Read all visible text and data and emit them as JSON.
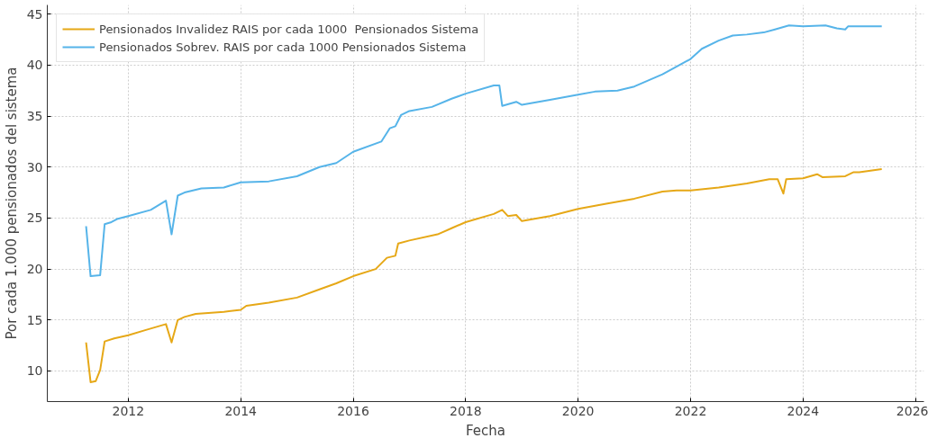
{
  "chart_data": {
    "type": "line",
    "xlabel": "Fecha",
    "ylabel": "Por cada 1.000 pensionados del sistema",
    "xlim": [
      2010.56,
      2026.15
    ],
    "ylim": [
      7.0,
      45.9
    ],
    "xticks": [
      2012,
      2014,
      2016,
      2018,
      2020,
      2022,
      2024,
      2026
    ],
    "yticks": [
      10,
      15,
      20,
      25,
      30,
      35,
      40,
      45
    ],
    "grid": true,
    "legend": "top left",
    "line_style": "solid",
    "marker": "none",
    "series": [
      {
        "name": "Pensionados Invalidez RAIS por cada 1000  Pensionados Sistema",
        "color": "#e6a817",
        "x": [
          2011.25,
          2011.33,
          2011.42,
          2011.5,
          2011.58,
          2011.75,
          2012.0,
          2012.3,
          2012.67,
          2012.77,
          2012.88,
          2013.0,
          2013.2,
          2013.7,
          2014.0,
          2014.1,
          2014.5,
          2015.0,
          2015.4,
          2015.7,
          2016.0,
          2016.4,
          2016.6,
          2016.75,
          2016.8,
          2017.0,
          2017.5,
          2017.75,
          2018.0,
          2018.5,
          2018.65,
          2018.75,
          2018.9,
          2019.0,
          2019.5,
          2020.0,
          2020.5,
          2021.0,
          2021.5,
          2021.75,
          2022.0,
          2022.5,
          2023.0,
          2023.4,
          2023.55,
          2023.65,
          2023.7,
          2024.0,
          2024.25,
          2024.35,
          2024.75,
          2024.9,
          2025.0,
          2025.4
        ],
        "values": [
          12.8,
          8.9,
          9.0,
          10.1,
          12.9,
          13.2,
          13.5,
          14.0,
          14.6,
          12.8,
          15.0,
          15.3,
          15.6,
          15.8,
          16.0,
          16.4,
          16.7,
          17.2,
          18.0,
          18.6,
          19.3,
          20.0,
          21.1,
          21.3,
          22.5,
          22.8,
          23.4,
          24.0,
          24.6,
          25.4,
          25.8,
          25.2,
          25.3,
          24.7,
          25.2,
          25.9,
          26.4,
          26.9,
          27.6,
          27.7,
          27.7,
          28.0,
          28.4,
          28.8,
          28.8,
          27.4,
          28.8,
          28.9,
          29.3,
          29.0,
          29.1,
          29.5,
          29.5,
          29.8
        ]
      },
      {
        "name": "Pensionados Sobrev. RAIS por cada 1000 Pensionados Sistema",
        "color": "#56b4e9",
        "x": [
          2011.25,
          2011.33,
          2011.5,
          2011.58,
          2011.7,
          2011.8,
          2012.0,
          2012.4,
          2012.67,
          2012.77,
          2012.88,
          2013.0,
          2013.3,
          2013.7,
          2014.0,
          2014.5,
          2015.0,
          2015.4,
          2015.7,
          2016.0,
          2016.5,
          2016.65,
          2016.75,
          2016.85,
          2017.0,
          2017.4,
          2017.75,
          2018.0,
          2018.5,
          2018.6,
          2018.65,
          2018.9,
          2019.0,
          2019.5,
          2020.0,
          2020.3,
          2020.7,
          2021.0,
          2021.5,
          2021.8,
          2022.0,
          2022.2,
          2022.5,
          2022.75,
          2023.0,
          2023.3,
          2023.5,
          2023.75,
          2024.0,
          2024.4,
          2024.6,
          2024.75,
          2024.8,
          2025.0,
          2025.4
        ],
        "values": [
          24.2,
          19.3,
          19.4,
          24.4,
          24.6,
          24.9,
          25.2,
          25.8,
          26.7,
          23.4,
          27.2,
          27.5,
          27.9,
          28.0,
          28.5,
          28.6,
          29.1,
          30.0,
          30.4,
          31.5,
          32.5,
          33.8,
          34.0,
          35.1,
          35.5,
          35.9,
          36.7,
          37.2,
          38.0,
          38.0,
          36.0,
          36.4,
          36.1,
          36.6,
          37.1,
          37.4,
          37.5,
          37.9,
          39.1,
          40.0,
          40.6,
          41.6,
          42.4,
          42.9,
          43.0,
          43.2,
          43.5,
          43.9,
          43.8,
          43.9,
          43.6,
          43.5,
          43.8,
          43.8,
          43.8
        ]
      }
    ]
  }
}
